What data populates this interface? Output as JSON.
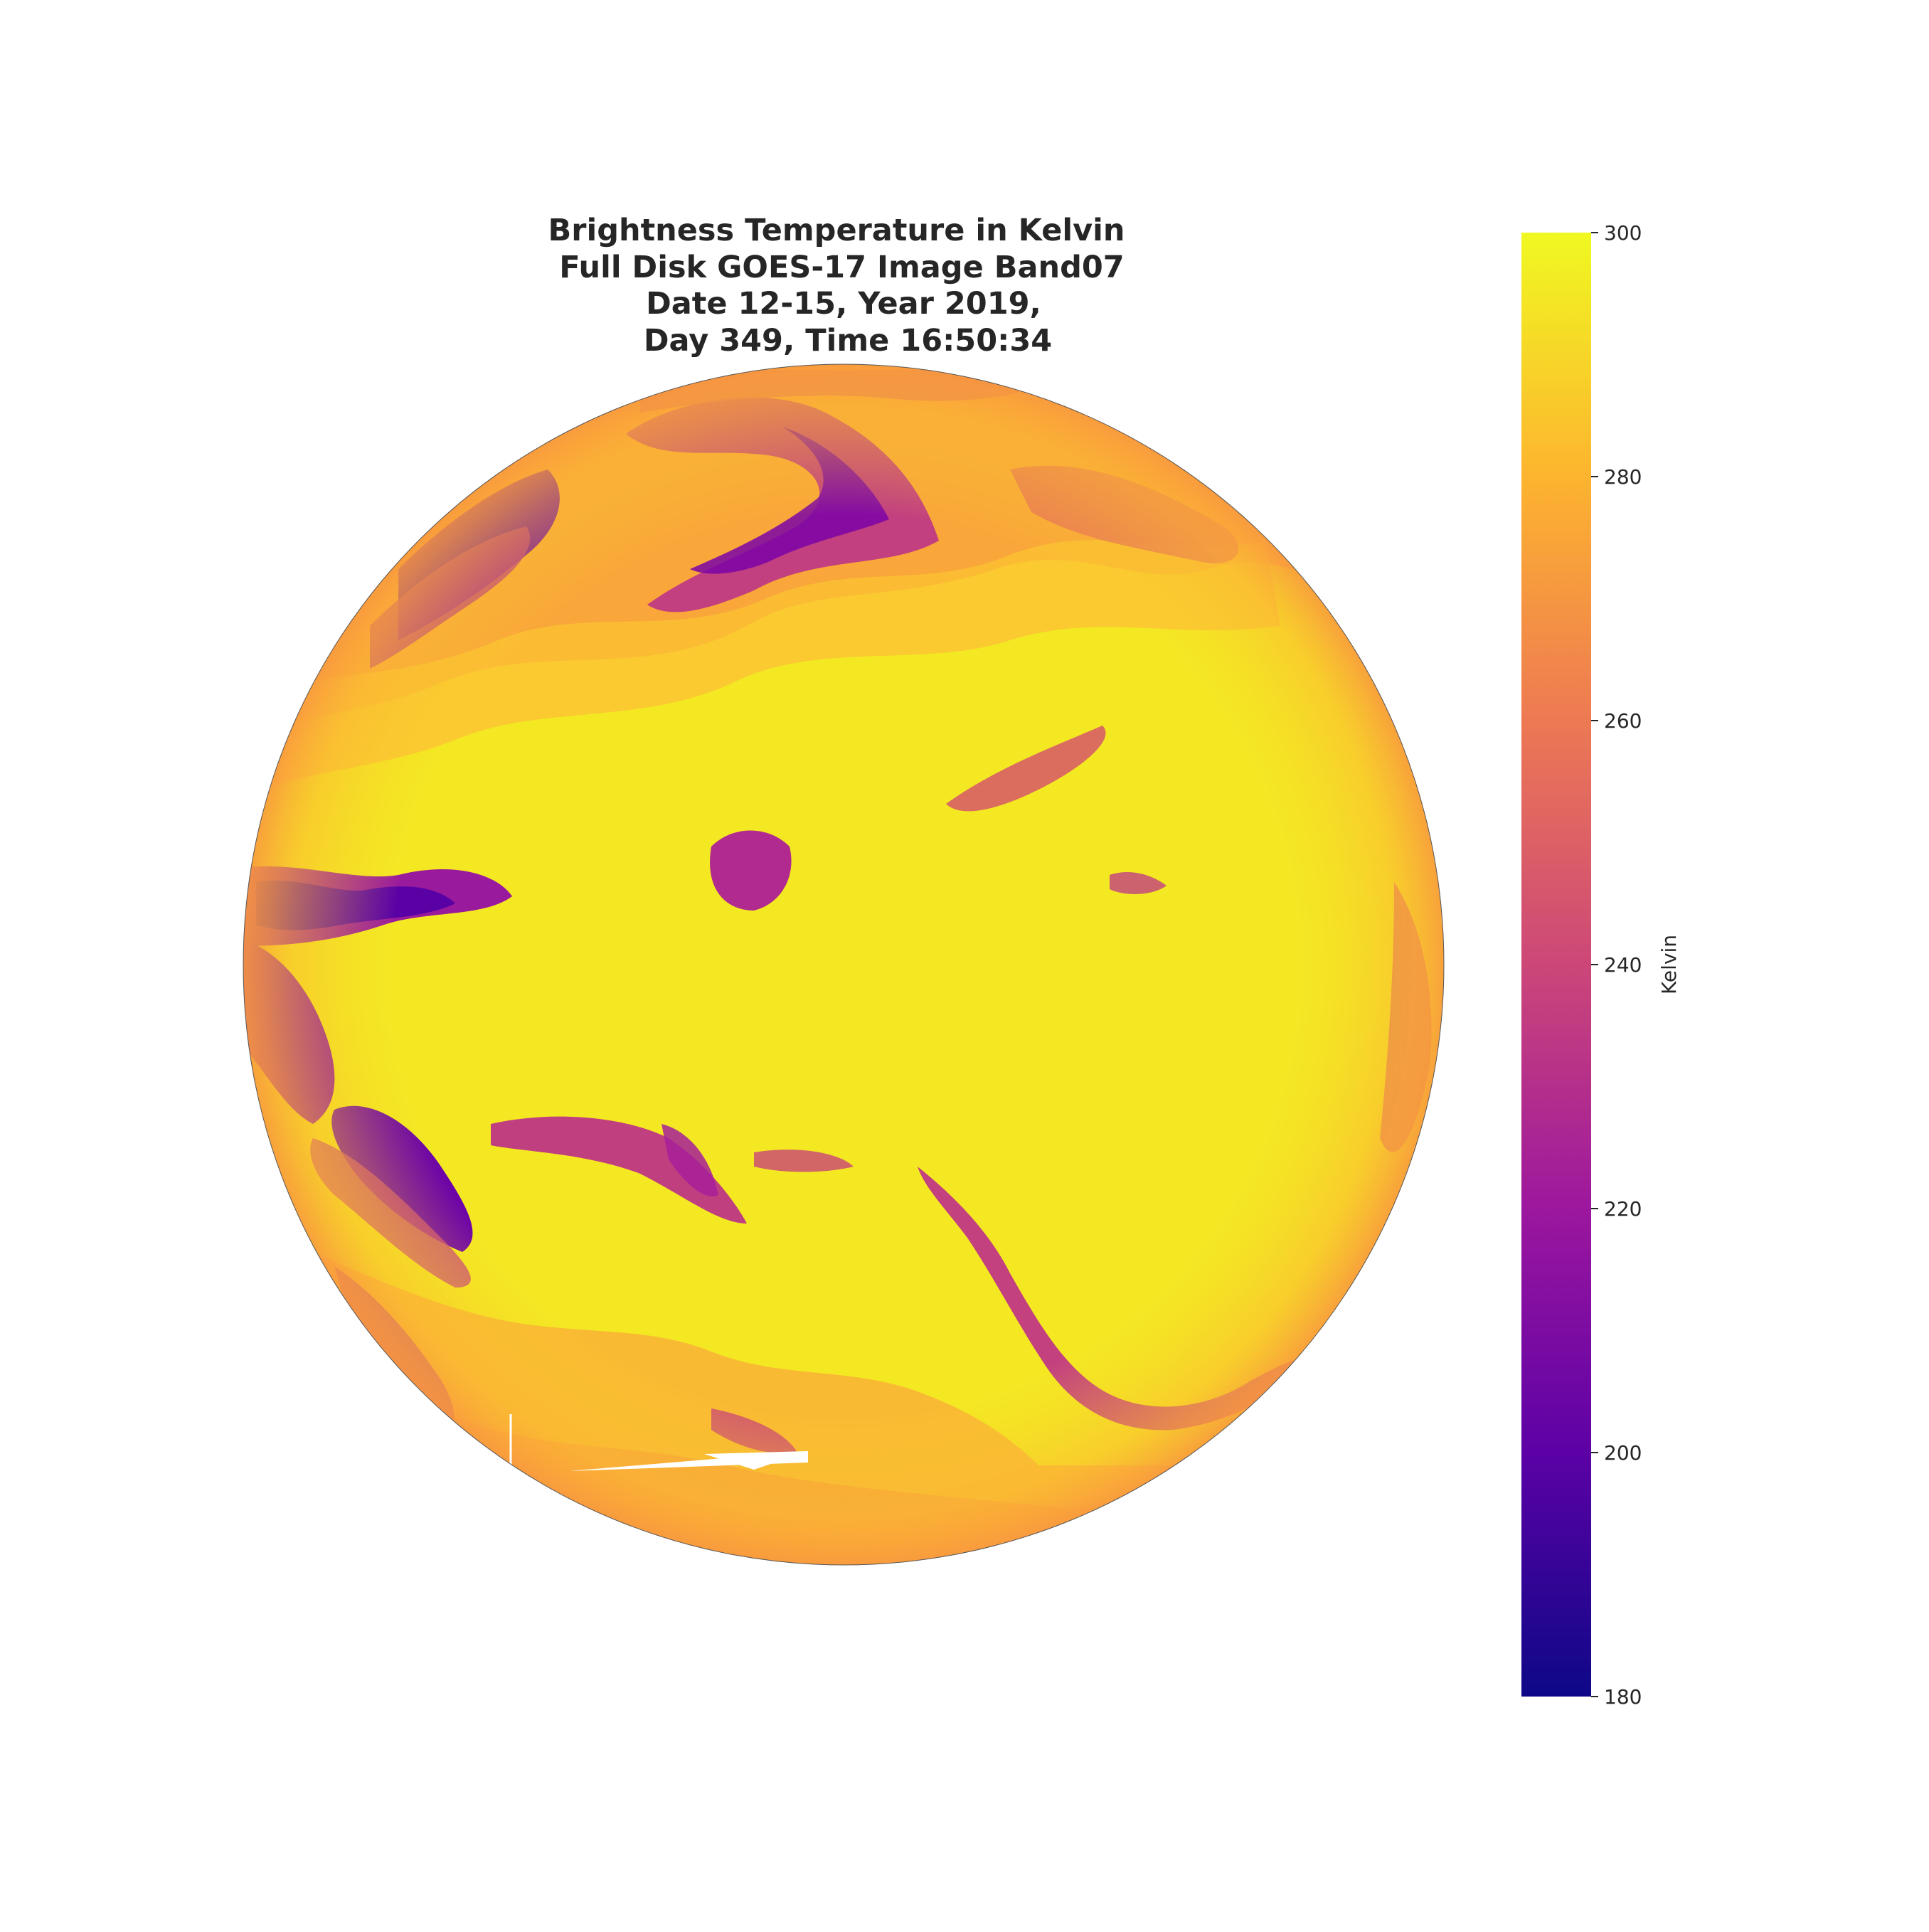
{
  "figure": {
    "title_lines": [
      "Brightness Temperature in Kelvin",
      " Full Disk GOES-17 Image Band07",
      "Date 12-15, Year 2019,",
      "Day 349, Time 16:50:34"
    ]
  },
  "colorbar": {
    "label": "Kelvin",
    "colormap": "plasma",
    "min": 180,
    "max": 300,
    "ticks": [
      "180",
      "200",
      "220",
      "240",
      "260",
      "280",
      "300"
    ],
    "tick_values": [
      180,
      200,
      220,
      240,
      260,
      280,
      300
    ],
    "colors": [
      "#0d0887",
      "#5c01a6",
      "#9c179e",
      "#cc4778",
      "#ed7953",
      "#fdb42f",
      "#f0f921"
    ]
  },
  "image": {
    "subject": "full-disk-earth-infrared",
    "dominant_colors": [
      "#f5ee22",
      "#fbb932",
      "#f99a3e",
      "#cf4a76",
      "#8a0ba5",
      "#5d01a6"
    ]
  }
}
